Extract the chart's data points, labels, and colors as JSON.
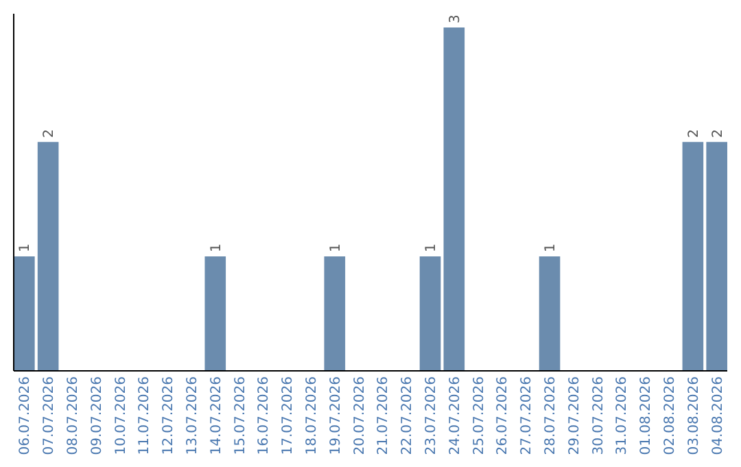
{
  "chart_data": {
    "type": "bar",
    "categories": [
      "06.07.2026",
      "07.07.2026",
      "08.07.2026",
      "09.07.2026",
      "10.07.2026",
      "11.07.2026",
      "12.07.2026",
      "13.07.2026",
      "14.07.2026",
      "15.07.2026",
      "16.07.2026",
      "17.07.2026",
      "18.07.2026",
      "19.07.2026",
      "20.07.2026",
      "21.07.2026",
      "22.07.2026",
      "23.07.2026",
      "24.07.2026",
      "25.07.2026",
      "26.07.2026",
      "27.07.2026",
      "28.07.2026",
      "29.07.2026",
      "30.07.2026",
      "31.07.2026",
      "01.08.2026",
      "02.08.2026",
      "03.08.2026",
      "04.08.2026"
    ],
    "values": [
      1,
      2,
      0,
      0,
      0,
      0,
      0,
      0,
      1,
      0,
      0,
      0,
      0,
      1,
      0,
      0,
      0,
      1,
      3,
      0,
      0,
      0,
      1,
      0,
      0,
      0,
      0,
      0,
      2,
      2
    ],
    "value_labels": [
      "1",
      "2",
      null,
      null,
      null,
      null,
      null,
      null,
      "1",
      null,
      null,
      null,
      null,
      "1",
      null,
      null,
      null,
      "1",
      "3",
      null,
      null,
      null,
      "1",
      null,
      null,
      null,
      null,
      null,
      "2",
      "2"
    ],
    "color": "#6b8cae",
    "ylim": [
      0,
      3
    ],
    "tick_labels": "x"
  }
}
